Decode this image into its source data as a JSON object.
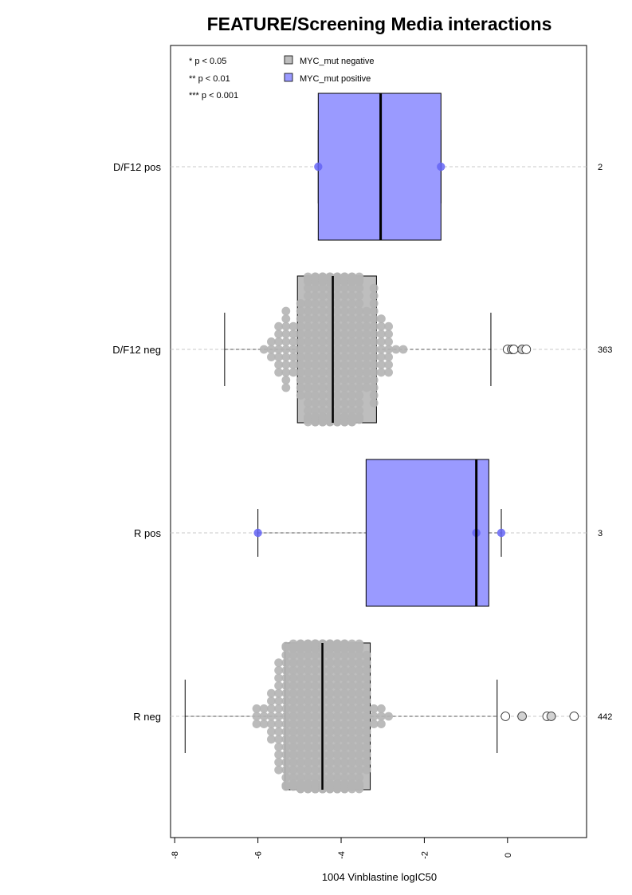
{
  "chart_data": {
    "type": "boxplot",
    "title": "FEATURE/Screening Media interactions",
    "xlabel": "1004 Vinblastine logIC50",
    "ylabel": "",
    "xlim": [
      -8.1,
      1.9
    ],
    "x_ticks": [
      -8,
      -6,
      -4,
      -2,
      0
    ],
    "x_tick_labels": [
      "-8",
      "-6",
      "-4",
      "-2",
      "0"
    ],
    "grid": "dashed horizontal guide per group",
    "significance_legend": [
      "* p < 0.05",
      "** p < 0.01",
      "*** p < 0.001"
    ],
    "legend": [
      {
        "label": "MYC_mut negative",
        "color": "#bebebe"
      },
      {
        "label": "MYC_mut positive",
        "color": "#9a9aff"
      }
    ],
    "legend_placement": "top-left",
    "groups": [
      {
        "label": "D/F12 pos",
        "n_label": "2",
        "mutation": "positive",
        "box": {
          "q1": -4.55,
          "median": -3.05,
          "q3": -1.6,
          "wlo": -4.55,
          "whi": -1.6
        },
        "points": [
          -4.55,
          -1.6
        ],
        "outliers": []
      },
      {
        "label": "D/F12 neg",
        "n_label": "363",
        "mutation": "negative",
        "box": {
          "q1": -5.05,
          "median": -4.2,
          "q3": -3.15,
          "wlo": -6.8,
          "whi": -0.4
        },
        "points_count": 363,
        "spread": [
          -6.8,
          -0.6
        ],
        "point_median": -4.2,
        "outliers": [
          0.0,
          0.1,
          0.15,
          0.35,
          0.45
        ]
      },
      {
        "label": "R pos",
        "n_label": "3",
        "mutation": "positive",
        "box": {
          "q1": -3.4,
          "median": -0.75,
          "q3": -0.45,
          "wlo": -6.0,
          "whi": -0.15
        },
        "points": [
          -6.0,
          -0.75,
          -0.15
        ],
        "outliers": []
      },
      {
        "label": "R neg",
        "n_label": "442",
        "mutation": "negative",
        "box": {
          "q1": -5.35,
          "median": -4.45,
          "q3": -3.3,
          "wlo": -7.75,
          "whi": -0.25
        },
        "points_count": 442,
        "spread": [
          -7.75,
          -0.6
        ],
        "point_median": -4.45,
        "outliers": [
          -0.05,
          0.35,
          0.95,
          1.05,
          1.6
        ]
      }
    ]
  },
  "colors": {
    "positive_fill": "#9a9aff",
    "positive_point": "#6464f5",
    "negative_fill": "#bebebe",
    "negative_point": "#b4b4b4",
    "outlier_fill": "#d2d2d2",
    "guide": "#c8c8c8"
  }
}
